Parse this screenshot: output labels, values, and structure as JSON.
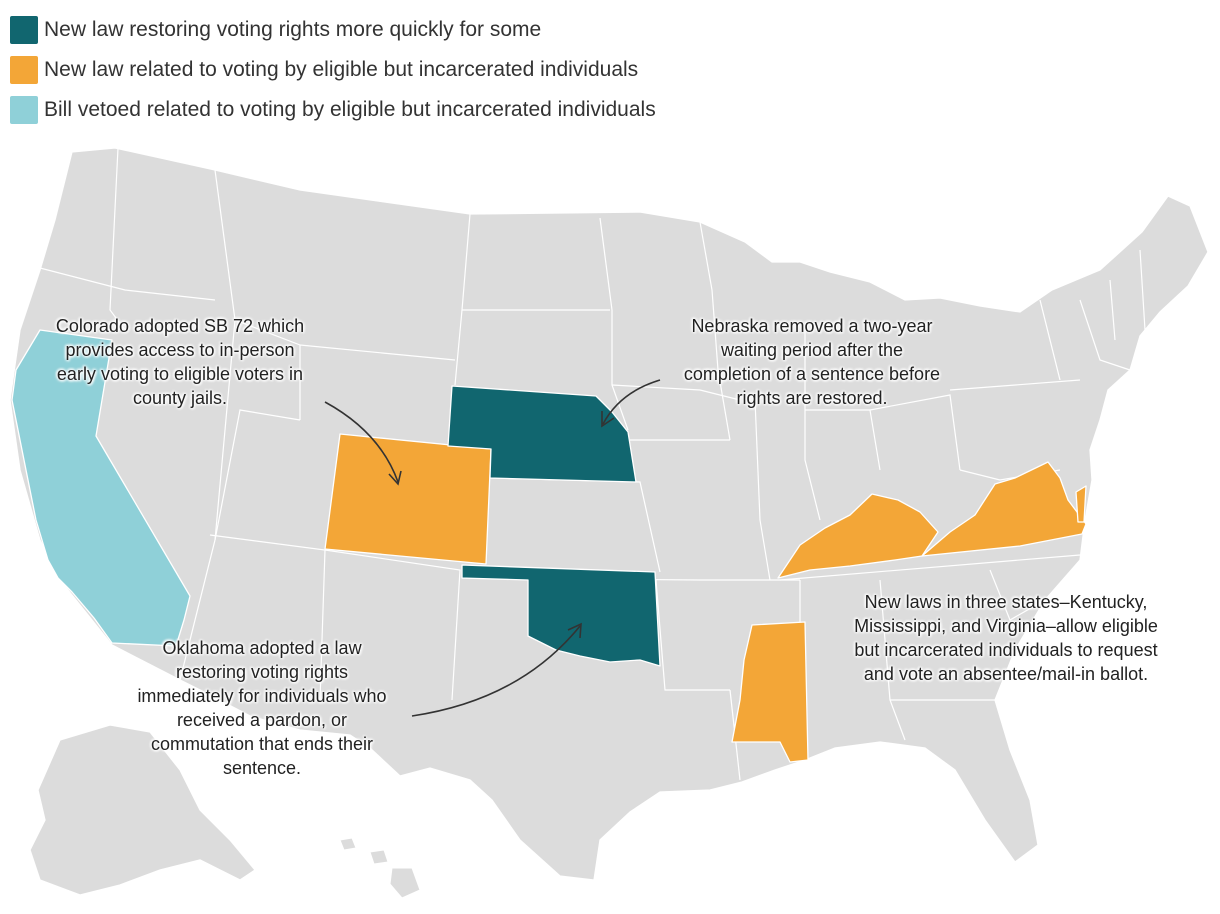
{
  "colors": {
    "restoring": "#11666f",
    "new_law_incarcerated": "#f3a637",
    "vetoed": "#8fd0d8",
    "other_states": "#dcdcdc",
    "borders": "#ffffff"
  },
  "legend": [
    {
      "label": "New law restoring voting rights more quickly for some",
      "color": "#11666f"
    },
    {
      "label": "New law related to voting by eligible but incarcerated individuals",
      "color": "#f3a637"
    },
    {
      "label": "Bill vetoed related to voting by eligible but incarcerated individuals",
      "color": "#8fd0d8"
    }
  ],
  "states": {
    "california": "vetoed",
    "colorado": "new_law_incarcerated",
    "nebraska": "restoring",
    "oklahoma": "restoring",
    "kentucky": "new_law_incarcerated",
    "virginia": "new_law_incarcerated",
    "mississippi": "new_law_incarcerated"
  },
  "annotations": {
    "colorado": [
      "Colorado adopted SB 72 which",
      "provides access to in-person",
      "early voting to eligible voters in",
      "county jails."
    ],
    "nebraska": [
      "Nebraska removed a two-year",
      "waiting period after the",
      "completion of a sentence before",
      "rights are restored."
    ],
    "oklahoma": [
      "Oklahoma adopted a law",
      "restoring voting rights",
      "immediately for individuals who",
      "received a pardon, or",
      "commutation that ends their",
      "sentence."
    ],
    "three_states": [
      "New laws in three states–Kentucky,",
      "Mississippi, and Virginia–allow eligible",
      "but incarcerated individuals to request",
      "and vote an absentee/mail-in ballot."
    ]
  }
}
